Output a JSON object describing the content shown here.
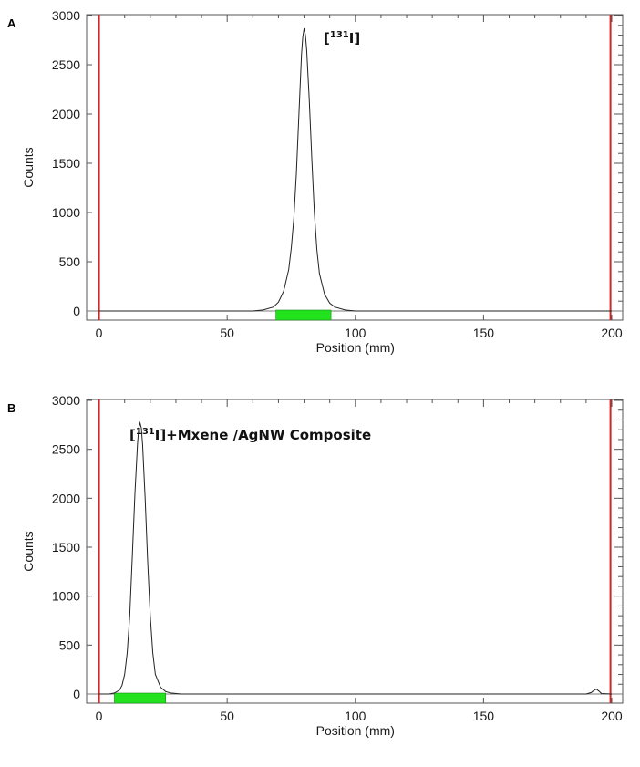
{
  "chart_data": [
    {
      "type": "line",
      "panel_label": "A",
      "annotation": "[¹³¹I]",
      "xlabel": "Position (mm)",
      "ylabel": "Counts",
      "xlim": [
        0,
        200
      ],
      "ylim": [
        0,
        3000
      ],
      "x_ticks": [
        0,
        50,
        100,
        150,
        200
      ],
      "y_ticks": [
        0,
        500,
        1000,
        1500,
        2000,
        2500,
        3000
      ],
      "markers_x": [
        0,
        199.5
      ],
      "marker_color": "#cc2a2a",
      "region": {
        "start": 69,
        "end": 90.5,
        "color": "#22e21e"
      },
      "series": [
        {
          "x": [
            0,
            40,
            60,
            64,
            68,
            70,
            72,
            74,
            75,
            76,
            77,
            78,
            79,
            79.5,
            80,
            80.5,
            81,
            82,
            83,
            84,
            85,
            86,
            88,
            90,
            92,
            96,
            100,
            200
          ],
          "y": [
            0,
            0,
            0,
            10,
            40,
            90,
            200,
            420,
            640,
            940,
            1400,
            2000,
            2600,
            2780,
            2870,
            2800,
            2650,
            2150,
            1550,
            1000,
            620,
            380,
            170,
            80,
            40,
            10,
            0,
            0
          ]
        }
      ]
    },
    {
      "type": "line",
      "panel_label": "B",
      "annotation": "[¹³¹I]+Mxene /AgNW Composite",
      "xlabel": "Position (mm)",
      "ylabel": "Counts",
      "xlim": [
        0,
        200
      ],
      "ylim": [
        0,
        3000
      ],
      "x_ticks": [
        0,
        50,
        100,
        150,
        200
      ],
      "y_ticks": [
        0,
        500,
        1000,
        1500,
        2000,
        2500,
        3000
      ],
      "markers_x": [
        0,
        199.5
      ],
      "marker_color": "#cc2a2a",
      "region": {
        "start": 6,
        "end": 26,
        "color": "#22e21e"
      },
      "series": [
        {
          "x": [
            0,
            4,
            6,
            8,
            9,
            10,
            11,
            12,
            13,
            14,
            15,
            15.5,
            16,
            16.5,
            17,
            18,
            19,
            20,
            21,
            22,
            24,
            26,
            28,
            32,
            40,
            190,
            192,
            193,
            194,
            195,
            196,
            200
          ],
          "y": [
            0,
            0,
            10,
            40,
            90,
            200,
            420,
            800,
            1400,
            2050,
            2550,
            2720,
            2770,
            2720,
            2550,
            2000,
            1350,
            800,
            420,
            200,
            70,
            25,
            10,
            0,
            0,
            0,
            15,
            35,
            50,
            30,
            5,
            0
          ]
        }
      ]
    }
  ]
}
